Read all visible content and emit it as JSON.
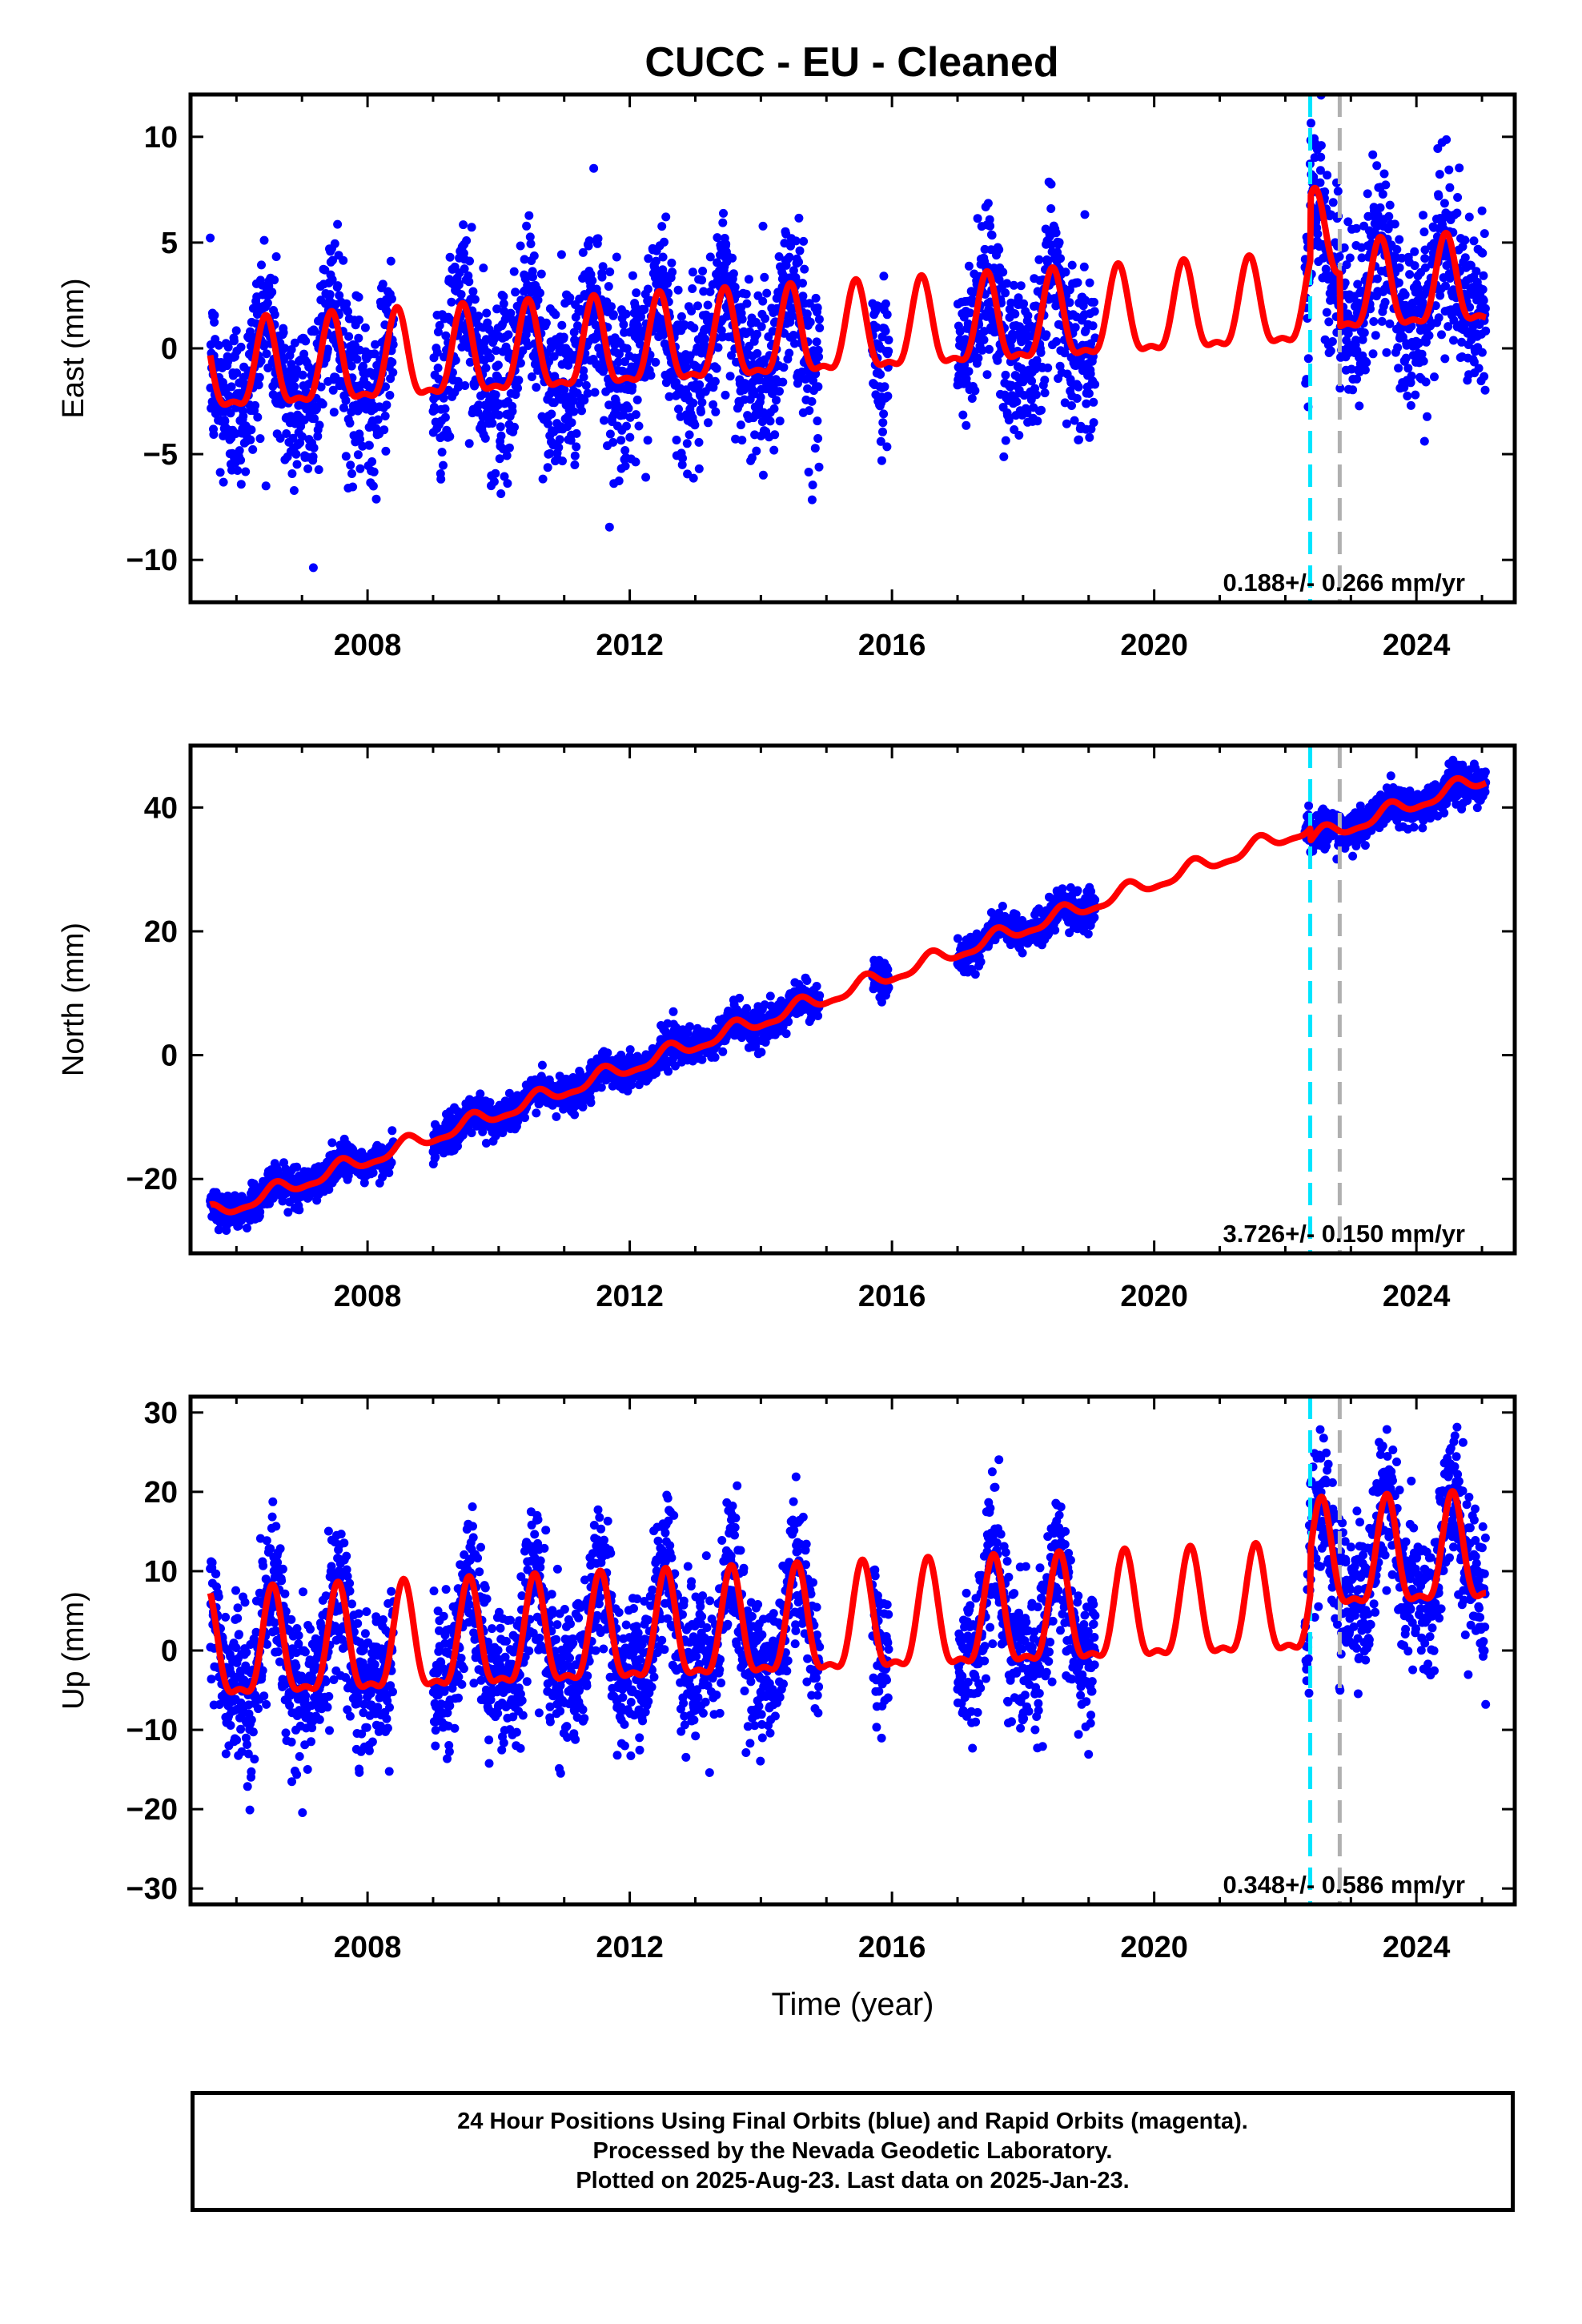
{
  "title": "CUCC  - EU - Cleaned",
  "colors": {
    "points": "#0000ff",
    "model": "#ff0000",
    "line_cyan": "#00e5ff",
    "line_gray": "#b0b0b0",
    "frame": "#000000"
  },
  "footer": {
    "line1": "24 Hour Positions Using Final Orbits (blue) and Rapid Orbits (magenta).",
    "line2": "Processed by the Nevada Geodetic Laboratory.",
    "line3": "Plotted on 2025-Aug-23. Last data on 2025-Jan-23."
  },
  "chart_data": [
    {
      "type": "scatter",
      "ylabel": "East (mm)",
      "xlabel": "",
      "xlim": [
        2005.3,
        2025.5
      ],
      "ylim": [
        -12,
        12
      ],
      "xticks": [
        2008,
        2012,
        2016,
        2020,
        2024
      ],
      "yticks": [
        -10,
        -5,
        0,
        5,
        10
      ],
      "rate_label": "0.188+/- 0.266 mm/yr",
      "vertical_lines": [
        {
          "x": 2022.38,
          "color": "cyan"
        },
        {
          "x": 2022.83,
          "color": "gray"
        }
      ],
      "model": {
        "rate": 0.188,
        "offset_at_2005": -1.4,
        "amplitude": 2.0,
        "phase_peak": 0.45,
        "steps": [
          {
            "x": 2022.38,
            "delta": 3.0
          },
          {
            "x": 2022.83,
            "delta": -2.5
          }
        ]
      },
      "data_segments": [
        [
          2005.6,
          2008.4
        ],
        [
          2009.0,
          2014.9
        ],
        [
          2015.7,
          2015.95
        ],
        [
          2017.0,
          2019.1
        ],
        [
          2022.3,
          2025.06
        ]
      ],
      "scatter_std": 2.0
    },
    {
      "type": "scatter",
      "ylabel": "North (mm)",
      "xlabel": "",
      "xlim": [
        2005.3,
        2025.5
      ],
      "ylim": [
        -32,
        50
      ],
      "xticks": [
        2008,
        2012,
        2016,
        2020,
        2024
      ],
      "yticks": [
        -20,
        0,
        20,
        40
      ],
      "rate_label": "3.726+/- 0.150 mm/yr",
      "vertical_lines": [
        {
          "x": 2022.38,
          "color": "cyan"
        },
        {
          "x": 2022.83,
          "color": "gray"
        }
      ],
      "model": {
        "rate": 3.726,
        "offset_at_2005": -28.0,
        "amplitude": 1.2,
        "phase_peak": 0.6,
        "steps": [
          {
            "x": 2022.38,
            "delta": -2.0
          }
        ]
      },
      "data_segments": [
        [
          2005.6,
          2008.4
        ],
        [
          2009.0,
          2014.9
        ],
        [
          2015.7,
          2015.95
        ],
        [
          2017.0,
          2019.1
        ],
        [
          2022.3,
          2025.06
        ]
      ],
      "scatter_std": 1.4
    },
    {
      "type": "scatter",
      "ylabel": "Up (mm)",
      "xlabel": "Time (year)",
      "xlim": [
        2005.3,
        2025.5
      ],
      "ylim": [
        -32,
        32
      ],
      "xticks": [
        2008,
        2012,
        2016,
        2020,
        2024
      ],
      "yticks": [
        -30,
        -20,
        -10,
        0,
        10,
        20,
        30
      ],
      "rate_label": "0.348+/- 0.586 mm/yr",
      "vertical_lines": [
        {
          "x": 2022.38,
          "color": "cyan"
        },
        {
          "x": 2022.83,
          "color": "gray"
        }
      ],
      "model": {
        "rate": 0.348,
        "offset_at_2005": -1.0,
        "amplitude": 6.5,
        "phase_peak": 0.55,
        "steps": [
          {
            "x": 2022.38,
            "delta": 5.5
          }
        ]
      },
      "data_segments": [
        [
          2005.6,
          2008.4
        ],
        [
          2009.0,
          2014.9
        ],
        [
          2015.7,
          2015.95
        ],
        [
          2017.0,
          2019.1
        ],
        [
          2022.3,
          2025.06
        ]
      ],
      "scatter_std": 4.5
    }
  ]
}
